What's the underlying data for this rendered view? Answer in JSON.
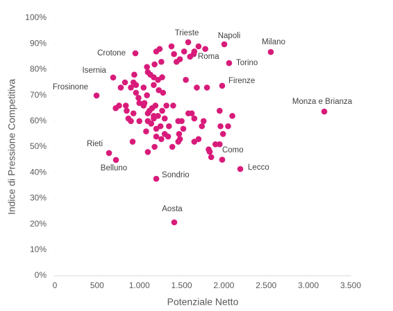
{
  "chart_data": {
    "type": "scatter",
    "x_label": "Potenziale Netto",
    "y_label": "Indice di Pressione Competitiva",
    "color": "#d81b7a",
    "xlim": [
      0,
      3500
    ],
    "ylim": [
      0,
      100
    ],
    "xticks": [
      0,
      500,
      {
        "value": 1000,
        "label": "1.000"
      },
      {
        "value": 1500,
        "label": "1.500"
      },
      {
        "value": 2000,
        "label": "2.000"
      },
      {
        "value": 2500,
        "label": "2.500"
      },
      {
        "value": 3000,
        "label": "3.000"
      },
      {
        "value": 3500,
        "label": "3.500"
      }
    ],
    "yticks": [
      {
        "value": 0,
        "label": "0%"
      },
      {
        "value": 10,
        "label": "10%"
      },
      {
        "value": 20,
        "label": "20%"
      },
      {
        "value": 30,
        "label": "30%"
      },
      {
        "value": 40,
        "label": "40%"
      },
      {
        "value": 50,
        "label": "50%"
      },
      {
        "value": 60,
        "label": "60%"
      },
      {
        "value": 70,
        "label": "70%"
      },
      {
        "value": 80,
        "label": "80%"
      },
      {
        "value": 90,
        "label": "90%"
      },
      {
        "value": 100,
        "label": "100%"
      }
    ],
    "x": [
      1578,
      2005,
      2555,
      953,
      1643,
      2062,
      690,
      1980,
      493,
      3188,
      641,
      723,
      1832,
      2194,
      1200,
      1413,
      1200,
      1240,
      1090,
      1100,
      1130,
      1180,
      1260,
      1380,
      1410,
      1530,
      1600,
      1650,
      1700,
      1780,
      1440,
      1480,
      1170,
      1220,
      1270,
      1550,
      1680,
      1800,
      830,
      900,
      930,
      940,
      960,
      960,
      780,
      1050,
      1090,
      1170,
      1230,
      1280,
      720,
      760,
      840,
      850,
      870,
      930,
      990,
      1000,
      1050,
      1060,
      1100,
      1120,
      1150,
      1190,
      1170,
      1220,
      1270,
      1320,
      1400,
      1580,
      1620,
      1650,
      1460,
      900,
      1000,
      1080,
      1100,
      1140,
      1200,
      1170,
      1250,
      1300,
      1350,
      1500,
      1520,
      1740,
      1760,
      1950,
      1960,
      1990,
      2050,
      2100,
      920,
      1100,
      1180,
      1200,
      1260,
      1340,
      1460,
      1470,
      1480,
      1650,
      1700,
      1900,
      1950,
      1850,
      1980,
      1820,
      1390,
      1300
    ],
    "y": [
      90.6,
      89.8,
      86.8,
      86.3,
      86,
      82.5,
      76.9,
      73.7,
      69.9,
      63.7,
      47.6,
      44.9,
      48.1,
      41.4,
      37.6,
      20.7,
      87,
      88,
      81,
      79,
      78,
      82,
      83,
      89,
      86,
      87,
      85,
      87,
      89,
      88,
      83,
      84,
      77,
      76,
      77,
      76,
      73,
      73,
      75,
      73,
      75,
      78,
      74,
      71,
      73,
      73,
      70,
      74,
      72,
      71,
      65,
      66,
      66,
      64,
      61,
      63,
      69,
      67,
      66,
      67,
      63,
      64,
      65,
      66,
      62,
      62,
      64,
      66,
      66,
      63,
      63,
      61,
      60,
      60,
      60,
      56,
      60,
      59,
      57,
      61,
      58,
      61,
      58,
      60,
      57,
      58,
      60,
      64,
      58,
      55,
      58,
      62,
      52,
      48,
      50,
      54,
      53,
      54,
      52,
      55,
      53,
      52,
      53,
      51,
      51,
      46,
      45,
      49,
      50,
      55
    ],
    "labels": [
      "Trieste",
      "Napoli",
      "Milano",
      "Crotone",
      "Roma",
      "Torino",
      "Isernia",
      "Firenze",
      "Frosinone",
      "Monza e Brianza",
      "Rieti",
      "Belluno",
      "Como",
      "Lecco",
      "Sondrio",
      "Aosta"
    ]
  }
}
